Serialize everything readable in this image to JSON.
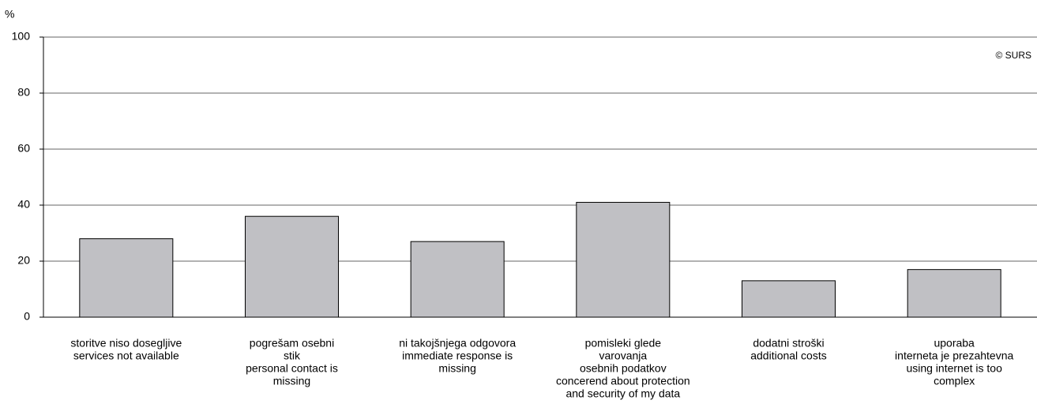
{
  "chart_data": {
    "type": "bar",
    "y_label": "%",
    "annotation": "© SURS",
    "categories": [
      [
        "storitve niso dosegljive",
        "services not available"
      ],
      [
        "pogrešam osebni",
        "stik",
        "personal contact is",
        "missing"
      ],
      [
        "ni takojšnjega odgovora",
        "immediate response is",
        "missing"
      ],
      [
        "pomisleki glede",
        "varovanja",
        "osebnih podatkov",
        "concerend about protection",
        "and security of my data"
      ],
      [
        "dodatni stroški",
        "additional costs"
      ],
      [
        "uporaba",
        "interneta je prezahtevna",
        "using internet is too",
        "complex"
      ]
    ],
    "values": [
      28,
      36,
      27,
      41,
      13,
      17
    ],
    "color": "#c0c0c4",
    "ylim": [
      0,
      100
    ],
    "yticks": [
      0,
      20,
      40,
      60,
      80,
      100
    ],
    "grid": true
  }
}
